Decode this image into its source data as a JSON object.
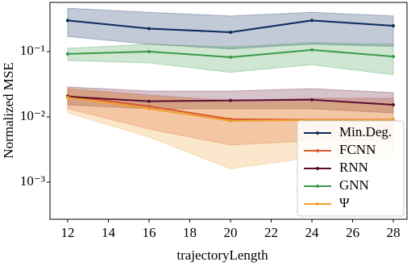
{
  "chart_data": {
    "type": "line",
    "xlabel": "trajectoryLength",
    "ylabel": "Normalized MSE",
    "x": [
      12,
      16,
      20,
      24,
      28
    ],
    "xlim": [
      11.13,
      28.67
    ],
    "xticks": [
      12,
      14,
      16,
      18,
      20,
      22,
      24,
      26,
      28
    ],
    "ylim": [
      0.00027,
      0.566
    ],
    "yscale": "log",
    "yticks": [
      {
        "value": 0.1,
        "label": "10⁻¹"
      },
      {
        "value": 0.01,
        "label": "10⁻²"
      },
      {
        "value": 0.001,
        "label": "10⁻³"
      }
    ],
    "legend": "lower right",
    "series": [
      {
        "name": "Min.Deg.",
        "color": "#0b2a5e",
        "values": [
          0.3,
          0.225,
          0.198,
          0.3,
          0.248
        ],
        "upper": [
          0.46,
          0.4,
          0.35,
          0.4,
          0.35
        ],
        "lower": [
          0.17,
          0.13,
          0.11,
          0.13,
          0.12
        ]
      },
      {
        "name": "FCNN",
        "color": "#d9572b",
        "values": [
          0.021,
          0.0145,
          0.0092,
          0.009,
          0.009
        ],
        "upper": [
          0.027,
          0.0216,
          0.0177,
          0.0193,
          0.0193
        ],
        "lower": [
          0.0133,
          0.0065,
          0.0037,
          0.0043,
          0.0043
        ]
      },
      {
        "name": "RNN",
        "color": "#5a0f2e",
        "values": [
          0.0204,
          0.0173,
          0.0178,
          0.0183,
          0.0153
        ],
        "upper": [
          0.0287,
          0.0248,
          0.0248,
          0.027,
          0.0235
        ],
        "lower": [
          0.0153,
          0.0133,
          0.0133,
          0.0133,
          0.0115
        ]
      },
      {
        "name": "GNN",
        "color": "#3a9a4a",
        "values": [
          0.092,
          0.1,
          0.082,
          0.106,
          0.084
        ],
        "upper": [
          0.112,
          0.13,
          0.118,
          0.137,
          0.13
        ],
        "lower": [
          0.073,
          0.067,
          0.048,
          0.063,
          0.044
        ]
      },
      {
        "name": "Ψ",
        "color": "#f0a030",
        "values": [
          0.0198,
          0.0133,
          0.0087,
          0.0089,
          0.0089
        ],
        "upper": [
          0.027,
          0.0202,
          0.0165,
          0.0165,
          0.0165
        ],
        "lower": [
          0.0115,
          0.0049,
          0.0016,
          0.0024,
          0.0024
        ]
      }
    ]
  }
}
